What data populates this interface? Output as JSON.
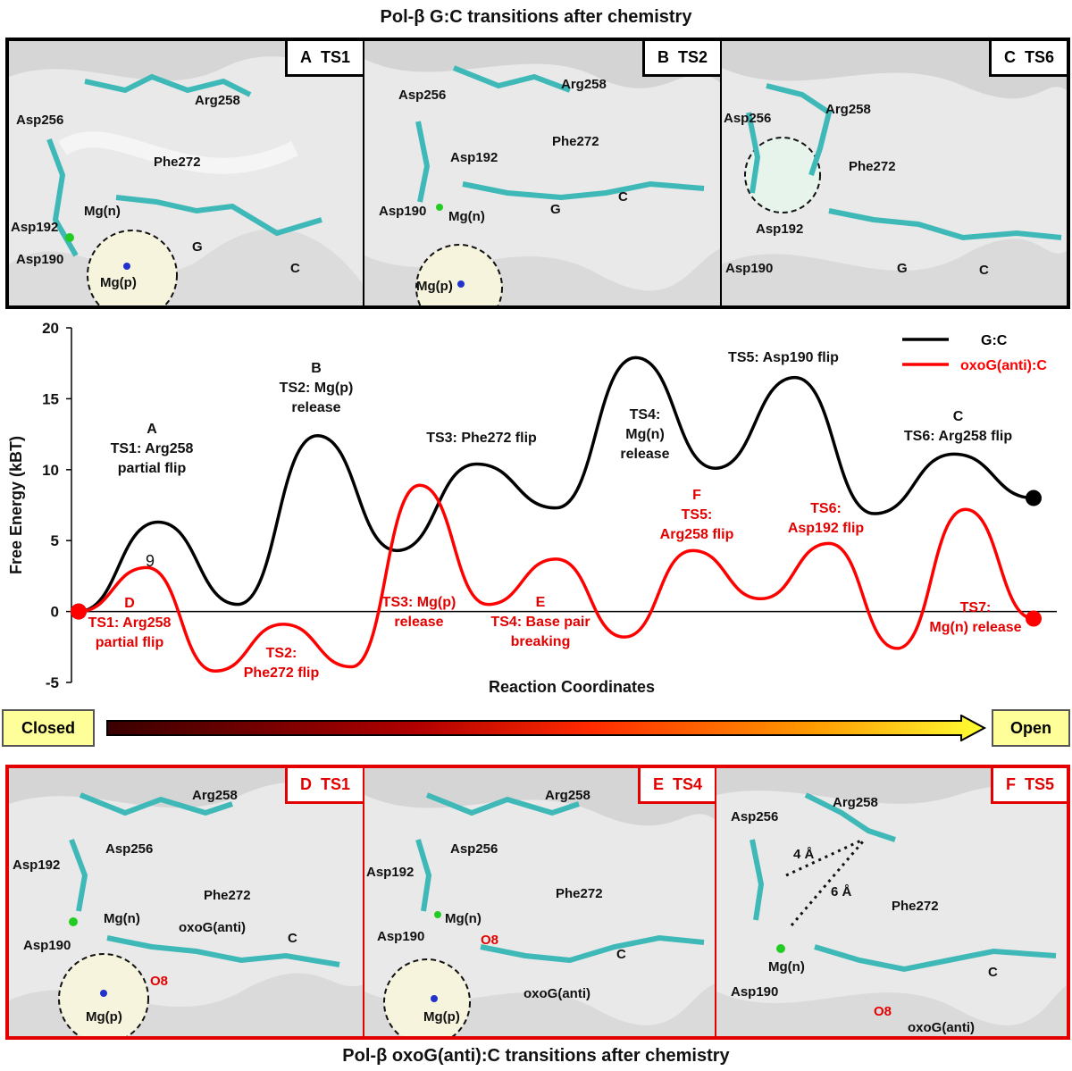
{
  "top_title": "Pol-β G:C transitions after chemistry",
  "bottom_title": "Pol-β oxoG(anti):C transitions after chemistry",
  "colors": {
    "gc": "#000000",
    "oxog": "#ff0000",
    "bottom_frame": "#e20000"
  },
  "top_panels": [
    {
      "tag_letter": "A",
      "tag_ts": "TS1",
      "labels": [
        "Asp256",
        "Arg258",
        "Phe272",
        "Mg(n)",
        "Asp192",
        "Asp190",
        "Mg(p)",
        "G",
        "C"
      ]
    },
    {
      "tag_letter": "B",
      "tag_ts": "TS2",
      "labels": [
        "Asp256",
        "Arg258",
        "Phe272",
        "Asp192",
        "Asp190",
        "Mg(n)",
        "G",
        "C",
        "Mg(p)"
      ]
    },
    {
      "tag_letter": "C",
      "tag_ts": "TS6",
      "labels": [
        "Asp256",
        "Arg258",
        "Phe272",
        "Asp192",
        "Asp190",
        "G",
        "C"
      ]
    }
  ],
  "bottom_panels": [
    {
      "tag_letter": "D",
      "tag_ts": "TS1",
      "labels": [
        "Arg258",
        "Asp256",
        "Asp192",
        "Phe272",
        "Mg(n)",
        "oxoG(anti)",
        "Asp190",
        "C",
        "O8",
        "Mg(p)"
      ]
    },
    {
      "tag_letter": "E",
      "tag_ts": "TS4",
      "labels": [
        "Arg258",
        "Asp256",
        "Asp192",
        "Phe272",
        "Mg(n)",
        "Asp190",
        "O8",
        "C",
        "oxoG(anti)",
        "Mg(p)"
      ]
    },
    {
      "tag_letter": "F",
      "tag_ts": "TS5",
      "labels": [
        "Asp256",
        "Arg258",
        "4 Å",
        "6 Å",
        "Phe272",
        "Mg(n)",
        "Asp190",
        "C",
        "O8",
        "oxoG(anti)"
      ]
    }
  ],
  "chart_data": {
    "type": "line",
    "ylabel": "Free Energy (kBT)",
    "xlabel": "Reaction Coordinates",
    "ylim": [
      -5,
      20
    ],
    "yticks": [
      20,
      15,
      10,
      5,
      0,
      -5
    ],
    "legend": {
      "placement": "top-right"
    },
    "series": [
      {
        "name": "G:C",
        "color": "#000000",
        "points": [
          [
            0,
            0
          ],
          [
            1,
            6.3
          ],
          [
            2,
            0.5
          ],
          [
            3,
            12.4
          ],
          [
            4,
            4.3
          ],
          [
            5,
            10.4
          ],
          [
            6,
            7.3
          ],
          [
            7,
            17.9
          ],
          [
            8,
            10.1
          ],
          [
            9,
            16.5
          ],
          [
            10,
            6.9
          ],
          [
            11,
            11.1
          ],
          [
            12,
            8.0
          ]
        ],
        "annotations": [
          "A\nTS1: Arg258\npartial flip",
          "B\nTS2: Mg(p)\nrelease",
          "TS3: Phe272 flip",
          "TS4:\nMg(n)\nrelease",
          "TS5: Asp190 flip",
          "C\nTS6: Arg258 flip"
        ]
      },
      {
        "name": "oxoG(anti):C",
        "color": "#ff0000",
        "points": [
          [
            0,
            0
          ],
          [
            1,
            3.1
          ],
          [
            2,
            -4.2
          ],
          [
            3,
            -0.9
          ],
          [
            4,
            -3.9
          ],
          [
            5,
            8.9
          ],
          [
            6,
            0.5
          ],
          [
            7,
            3.7
          ],
          [
            8,
            -1.8
          ],
          [
            9,
            4.3
          ],
          [
            10,
            0.9
          ],
          [
            11,
            4.8
          ],
          [
            12,
            -2.6
          ],
          [
            13,
            7.2
          ],
          [
            14,
            -0.5
          ]
        ],
        "annotations": [
          "D\nTS1: Arg258\npartial flip",
          "TS2:\nPhe272 flip",
          "TS3: Mg(p)\nrelease",
          "E\nTS4: Base pair\nbreaking",
          "F\nTS5:\nArg258 flip",
          "TS6:\nAsp192 flip",
          "TS7:\nMg(n) release"
        ]
      }
    ],
    "annotation_extra": "9"
  },
  "arrow": {
    "left": "Closed",
    "right": "Open"
  }
}
